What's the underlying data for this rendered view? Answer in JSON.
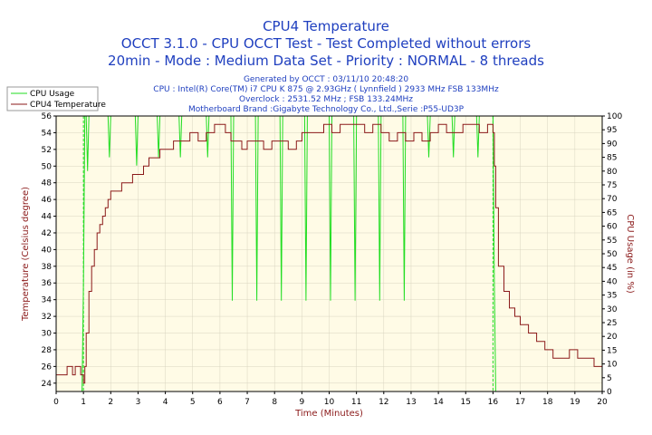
{
  "header": {
    "title": "CPU4 Temperature",
    "subtitle1": "OCCT 3.1.0 - CPU OCCT Test - Test Completed without errors",
    "subtitle2": "20min - Mode : Medium Data Set - Priority : NORMAL - 8 threads",
    "info": [
      "Generated by OCCT : 03/11/10 20:48:20",
      "CPU : Intel(R) Core(TM) i7 CPU K 875 @ 2.93GHz ( Lynnfield ) 2933 MHz FSB 133MHz",
      "Overclock : 2531.52 MHz ; FSB 133.24MHz",
      "Motherboard Brand :Gigabyte Technology Co., Ltd.,Serie :P55-UD3P"
    ]
  },
  "chart_data": {
    "type": "line",
    "xlabel": "Time (Minutes)",
    "ylabel_left": "Temperature (Celsius degree)",
    "ylabel_right": "CPU Usage (in %)",
    "xlim": [
      0,
      20
    ],
    "ylim_left": [
      23,
      56
    ],
    "ylim_right": [
      0,
      100
    ],
    "xticks": [
      0,
      1,
      2,
      3,
      4,
      5,
      6,
      7,
      8,
      9,
      10,
      11,
      12,
      13,
      14,
      15,
      16,
      17,
      18,
      19,
      20
    ],
    "yticks_left": [
      24,
      26,
      28,
      30,
      32,
      34,
      36,
      38,
      40,
      42,
      44,
      46,
      48,
      50,
      52,
      54,
      56
    ],
    "yticks_right": [
      0,
      5,
      10,
      15,
      20,
      25,
      30,
      35,
      40,
      45,
      50,
      55,
      60,
      65,
      70,
      75,
      80,
      85,
      90,
      95,
      100
    ],
    "legend": {
      "placement": "top-left",
      "entries": [
        "CPU Usage",
        "CPU4 Temperature"
      ]
    },
    "grid": true,
    "colors": {
      "cpu_usage": "#22dd22",
      "temperature": "#8b1a1a",
      "plot_bg": "#fffbe6",
      "grid": "#d8d4c0"
    },
    "markers": [
      1,
      16
    ],
    "series": [
      {
        "name": "CPU4 Temperature",
        "axis": "left",
        "x": [
          0,
          0.2,
          0.4,
          0.5,
          0.6,
          0.7,
          0.8,
          0.9,
          1.0,
          1.05,
          1.1,
          1.2,
          1.3,
          1.4,
          1.5,
          1.6,
          1.7,
          1.8,
          1.9,
          2.0,
          2.2,
          2.4,
          2.6,
          2.8,
          3.0,
          3.2,
          3.4,
          3.6,
          3.8,
          4.0,
          4.3,
          4.6,
          4.9,
          5.2,
          5.5,
          5.8,
          6.0,
          6.2,
          6.4,
          6.6,
          6.8,
          7.0,
          7.3,
          7.6,
          7.9,
          8.2,
          8.5,
          8.8,
          9.0,
          9.2,
          9.5,
          9.8,
          10.1,
          10.4,
          10.7,
          11.0,
          11.3,
          11.6,
          11.9,
          12.2,
          12.5,
          12.8,
          13.1,
          13.4,
          13.7,
          14.0,
          14.3,
          14.6,
          14.9,
          15.2,
          15.5,
          15.8,
          15.95,
          16.0,
          16.05,
          16.1,
          16.2,
          16.4,
          16.6,
          16.8,
          17.0,
          17.3,
          17.6,
          17.9,
          18.2,
          18.5,
          18.8,
          19.1,
          19.4,
          19.7,
          20.0
        ],
        "y": [
          25,
          25,
          26,
          26,
          25,
          26,
          26,
          25,
          24,
          26,
          30,
          35,
          38,
          40,
          42,
          43,
          44,
          45,
          46,
          47,
          47,
          48,
          48,
          49,
          49,
          50,
          51,
          51,
          52,
          52,
          53,
          53,
          54,
          53,
          54,
          55,
          55,
          54,
          53,
          53,
          52,
          53,
          53,
          52,
          53,
          53,
          52,
          53,
          54,
          54,
          54,
          55,
          54,
          55,
          55,
          55,
          54,
          55,
          54,
          53,
          54,
          53,
          54,
          53,
          54,
          55,
          54,
          54,
          55,
          55,
          54,
          55,
          55,
          54,
          50,
          45,
          38,
          35,
          33,
          32,
          31,
          30,
          29,
          28,
          27,
          27,
          28,
          27,
          27,
          26,
          26
        ]
      },
      {
        "name": "CPU Usage",
        "axis": "right",
        "x": [
          0,
          0.95,
          1.0,
          1.05,
          1.1,
          1.15,
          1.2,
          1.9,
          1.95,
          2.0,
          2.05,
          2.9,
          2.95,
          3.0,
          3.05,
          3.7,
          3.75,
          3.8,
          3.85,
          4.5,
          4.55,
          4.6,
          4.65,
          5.5,
          5.55,
          5.6,
          5.65,
          6.4,
          6.45,
          6.5,
          6.55,
          7.3,
          7.35,
          7.4,
          7.45,
          8.2,
          8.25,
          8.3,
          8.35,
          9.1,
          9.15,
          9.2,
          9.25,
          10.0,
          10.05,
          10.1,
          10.15,
          10.9,
          10.95,
          11.0,
          11.05,
          11.8,
          11.85,
          11.9,
          11.95,
          12.7,
          12.75,
          12.8,
          12.85,
          13.6,
          13.65,
          13.7,
          13.75,
          14.5,
          14.55,
          14.6,
          14.65,
          15.4,
          15.45,
          15.5,
          15.55,
          15.95,
          16.0,
          16.05,
          16.1,
          20.0
        ],
        "y": [
          0,
          0,
          40,
          100,
          100,
          80,
          100,
          100,
          85,
          100,
          100,
          100,
          82,
          100,
          100,
          100,
          85,
          100,
          100,
          100,
          85,
          100,
          100,
          100,
          85,
          100,
          100,
          100,
          33,
          100,
          100,
          100,
          33,
          100,
          100,
          100,
          33,
          100,
          100,
          100,
          33,
          100,
          100,
          100,
          33,
          100,
          100,
          100,
          33,
          100,
          100,
          100,
          33,
          100,
          100,
          100,
          33,
          100,
          100,
          100,
          85,
          100,
          100,
          100,
          85,
          100,
          100,
          100,
          85,
          100,
          100,
          100,
          100,
          40,
          0,
          0
        ]
      }
    ]
  }
}
